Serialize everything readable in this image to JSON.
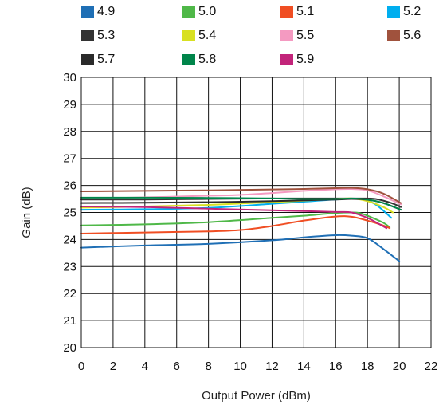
{
  "chart_data": {
    "type": "line",
    "title": "",
    "xlabel": "Output Power (dBm)",
    "ylabel": "Gain (dB)",
    "xlim": [
      0,
      22
    ],
    "ylim": [
      20,
      30
    ],
    "xticks": [
      0,
      2,
      4,
      6,
      8,
      10,
      12,
      14,
      16,
      18,
      20,
      22
    ],
    "yticks": [
      20,
      21,
      22,
      23,
      24,
      25,
      26,
      27,
      28,
      29,
      30
    ],
    "grid": true,
    "legend_position": "top",
    "series": [
      {
        "name": "4.9",
        "color": "#1f6fb5",
        "x": [
          0,
          4,
          8,
          12,
          14,
          16,
          17,
          18,
          19,
          20
        ],
        "y": [
          23.7,
          23.78,
          23.84,
          23.97,
          24.08,
          24.16,
          24.14,
          24.05,
          23.65,
          23.2
        ]
      },
      {
        "name": "5.0",
        "color": "#4fb848",
        "x": [
          0,
          4,
          8,
          12,
          14,
          16,
          17,
          17.5,
          18,
          19,
          19.4
        ],
        "y": [
          24.52,
          24.56,
          24.64,
          24.8,
          24.88,
          24.98,
          25.0,
          24.98,
          24.88,
          24.62,
          24.45
        ]
      },
      {
        "name": "5.1",
        "color": "#f04e23",
        "x": [
          0,
          4,
          8,
          10,
          12,
          14,
          16,
          17,
          18,
          19,
          19.4
        ],
        "y": [
          24.22,
          24.26,
          24.3,
          24.35,
          24.5,
          24.7,
          24.85,
          24.84,
          24.7,
          24.52,
          24.42
        ]
      },
      {
        "name": "5.2",
        "color": "#00aeef",
        "x": [
          0,
          4,
          8,
          12,
          14,
          16,
          17.5,
          18.5,
          19.5
        ],
        "y": [
          25.1,
          25.12,
          25.17,
          25.32,
          25.4,
          25.48,
          25.5,
          25.3,
          24.8
        ]
      },
      {
        "name": "5.3",
        "color": "#333333",
        "x": [
          0,
          4,
          8,
          12,
          14,
          16,
          17.5,
          18.5,
          19.5,
          20.1
        ],
        "y": [
          25.48,
          25.48,
          25.5,
          25.52,
          25.52,
          25.52,
          25.52,
          25.5,
          25.35,
          25.2
        ]
      },
      {
        "name": "5.4",
        "color": "#d8e021",
        "x": [
          0,
          4,
          8,
          12,
          14,
          16,
          17,
          18,
          19,
          19.6
        ],
        "y": [
          25.18,
          25.22,
          25.28,
          25.38,
          25.44,
          25.5,
          25.52,
          25.42,
          25.2,
          25.0
        ]
      },
      {
        "name": "5.5",
        "color": "#f49ac1",
        "x": [
          0,
          4,
          8,
          10,
          12,
          14,
          16,
          17,
          18,
          19,
          20.1
        ],
        "y": [
          25.52,
          25.56,
          25.62,
          25.65,
          25.72,
          25.8,
          25.86,
          25.87,
          25.82,
          25.6,
          25.3
        ]
      },
      {
        "name": "5.6",
        "color": "#a0523d",
        "x": [
          0,
          4,
          8,
          12,
          14,
          16,
          17,
          18,
          19,
          20.1
        ],
        "y": [
          25.78,
          25.8,
          25.82,
          25.85,
          25.87,
          25.9,
          25.91,
          25.86,
          25.7,
          25.35
        ]
      },
      {
        "name": "5.7",
        "color": "#2a2a2a",
        "x": [
          0,
          4,
          8,
          12,
          14,
          16,
          17,
          18,
          19,
          20.1
        ],
        "y": [
          25.35,
          25.36,
          25.38,
          25.42,
          25.45,
          25.48,
          25.5,
          25.47,
          25.35,
          25.1
        ]
      },
      {
        "name": "5.8",
        "color": "#00854a",
        "x": [
          0,
          4,
          8,
          12,
          14,
          16,
          17,
          18,
          19,
          20.1
        ],
        "y": [
          25.55,
          25.55,
          25.54,
          25.52,
          25.5,
          25.5,
          25.52,
          25.48,
          25.35,
          25.1
        ]
      },
      {
        "name": "5.9",
        "color": "#c2247a",
        "x": [
          0,
          4,
          8,
          12,
          14,
          16,
          17,
          18,
          18.5,
          19.2
        ],
        "y": [
          25.22,
          25.2,
          25.14,
          25.08,
          25.05,
          25.02,
          25.0,
          24.8,
          24.65,
          24.42
        ]
      }
    ]
  }
}
